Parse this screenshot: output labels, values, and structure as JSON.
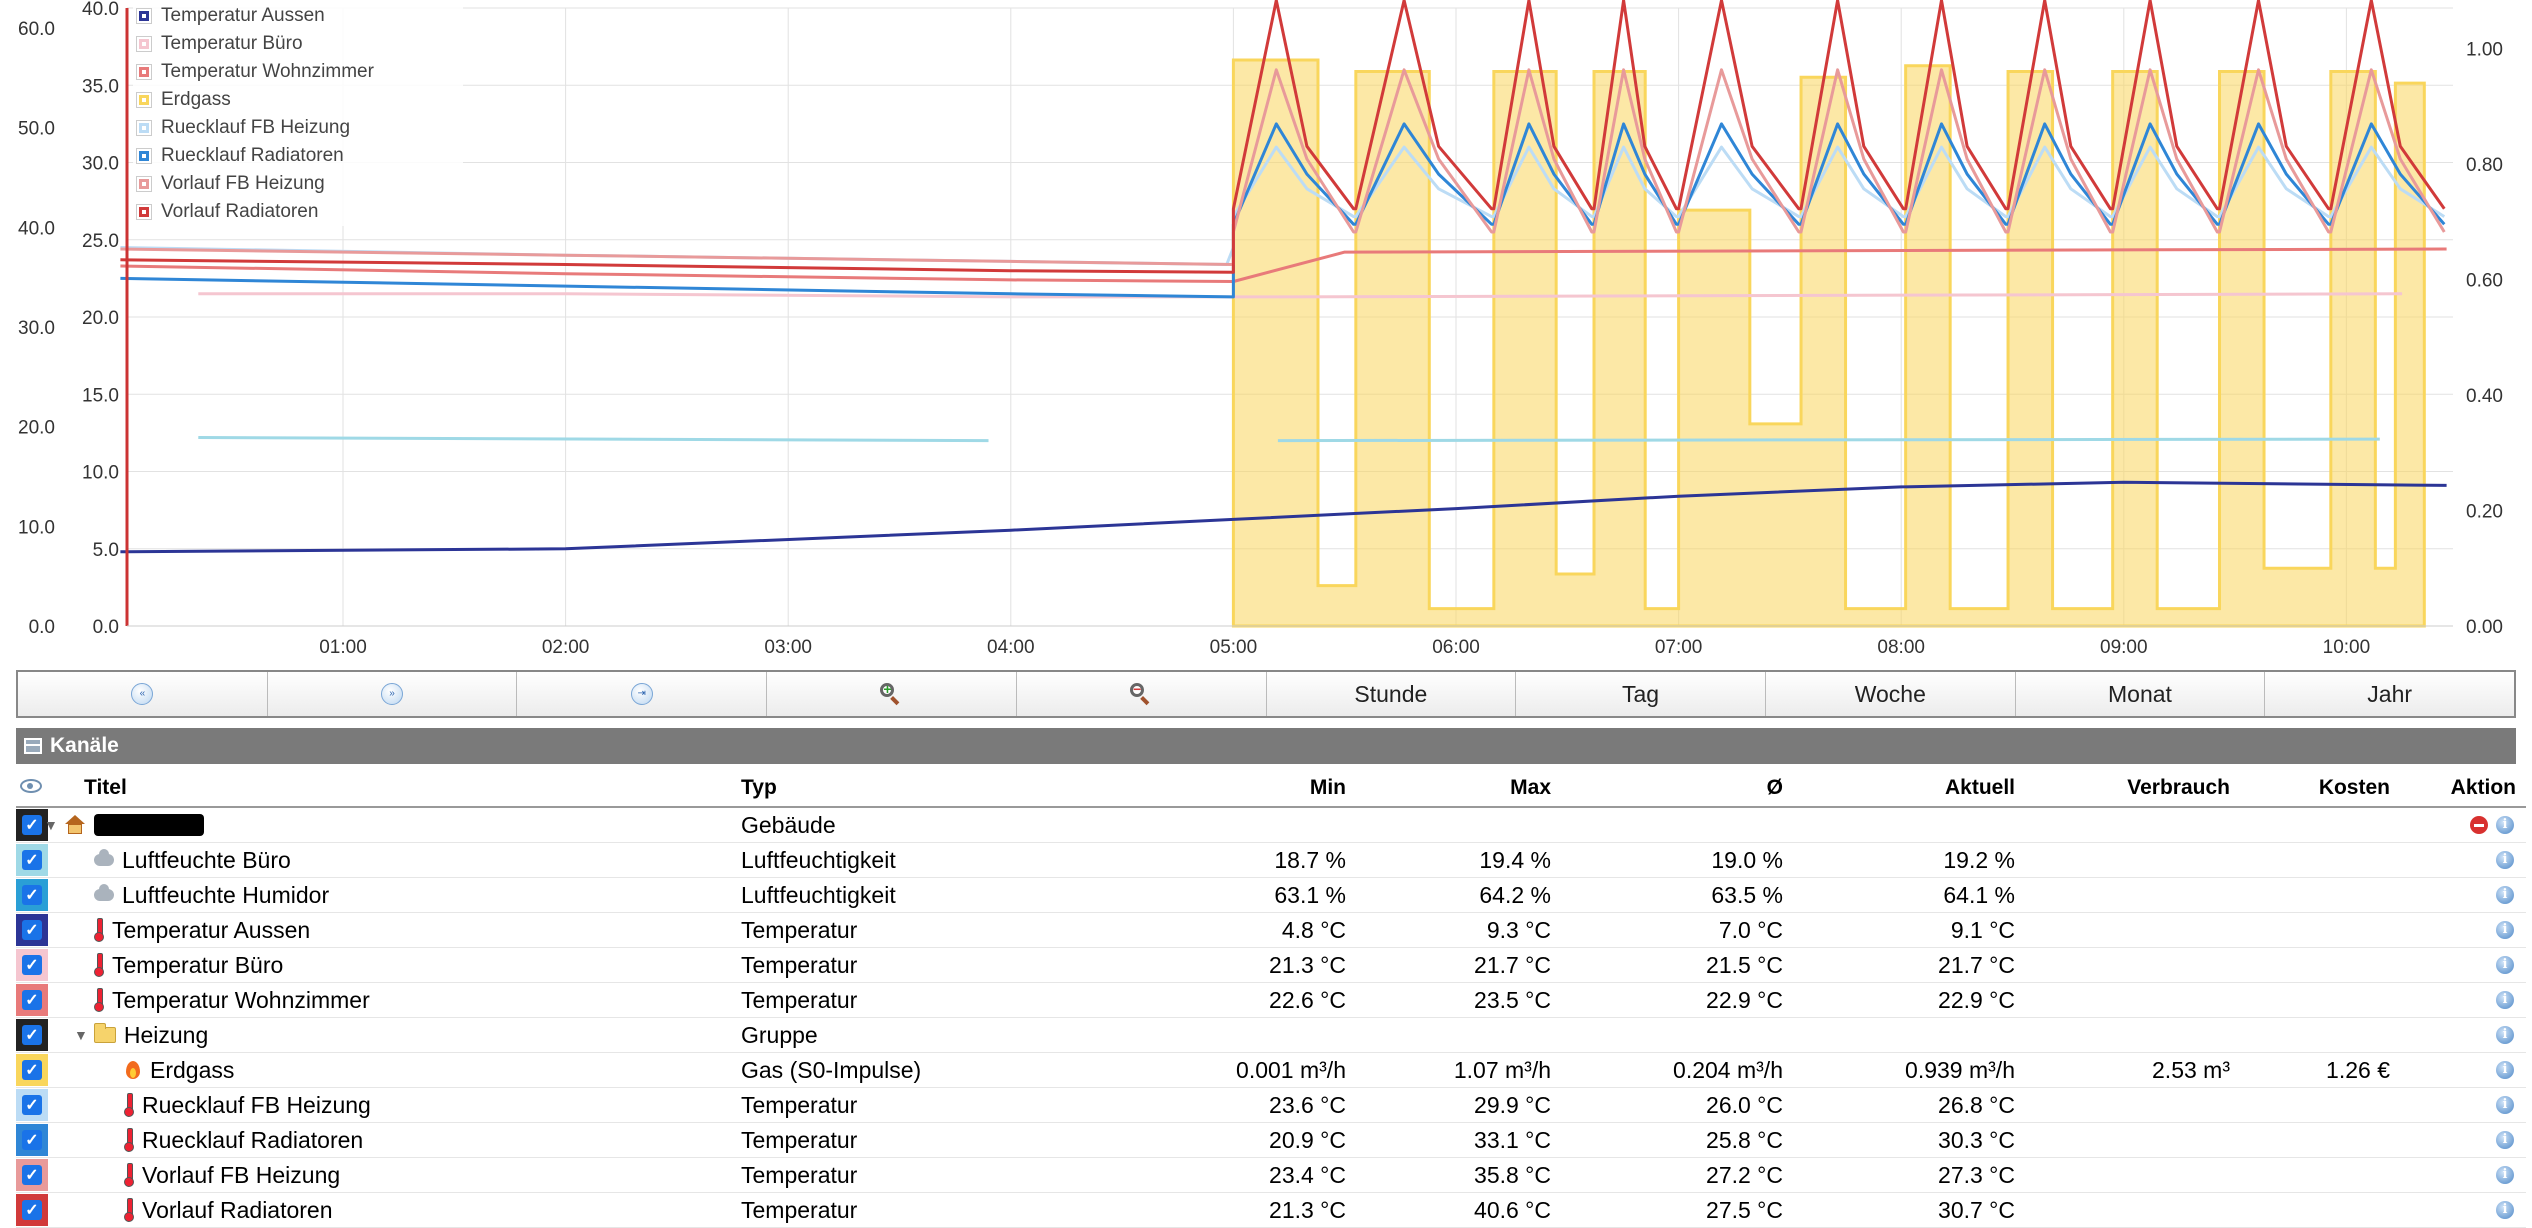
{
  "chart_data": {
    "type": "line",
    "x_ticks": [
      "01:00",
      "02:00",
      "03:00",
      "04:00",
      "05:00",
      "06:00",
      "07:00",
      "08:00",
      "09:00",
      "10:00"
    ],
    "y_axes": {
      "outer_left": {
        "ticks": [
          "0.0",
          "10.0",
          "20.0",
          "30.0",
          "40.0",
          "50.0",
          "60.0"
        ],
        "ylim": [
          0,
          62
        ]
      },
      "inner_left": {
        "ticks": [
          "0.0",
          "5.0",
          "10.0",
          "15.0",
          "20.0",
          "25.0",
          "30.0",
          "35.0",
          "40.0"
        ],
        "ylim": [
          0,
          40
        ]
      },
      "right": {
        "ticks": [
          "0.00",
          "0.20",
          "0.40",
          "0.60",
          "0.80",
          "1.00"
        ],
        "ylim": [
          0,
          1.07
        ]
      }
    },
    "grid": true,
    "legend_position": "top-left",
    "series": [
      {
        "name": "Temperatur Aussen",
        "color": "#2c3596"
      },
      {
        "name": "Temperatur Büro",
        "color": "#f5c6d0"
      },
      {
        "name": "Temperatur Wohnzimmer",
        "color": "#e87a7a"
      },
      {
        "name": "Erdgass",
        "color": "#f9d65c"
      },
      {
        "name": "Ruecklauf FB Heizung",
        "color": "#bcdcf5"
      },
      {
        "name": "Ruecklauf Radiatoren",
        "color": "#2f86d6"
      },
      {
        "name": "Vorlauf FB Heizung",
        "color": "#e89a9a"
      },
      {
        "name": "Vorlauf Radiatoren",
        "color": "#d13a3a"
      }
    ]
  },
  "toolbar": {
    "buttons": [
      "«",
      "»",
      "⇥",
      "zoom-in",
      "zoom-out",
      "Stunde",
      "Tag",
      "Woche",
      "Monat",
      "Jahr"
    ]
  },
  "channels": {
    "title": "Kanäle",
    "columns": {
      "titel": "Titel",
      "typ": "Typ",
      "min": "Min",
      "max": "Max",
      "avg": "Ø",
      "aktuell": "Aktuell",
      "verbrauch": "Verbrauch",
      "kosten": "Kosten",
      "aktion": "Aktion"
    },
    "rows": [
      {
        "title": "",
        "type": "Gebäude",
        "min": "",
        "max": "",
        "avg": "",
        "cur": "",
        "use": "",
        "cost": "",
        "color": "#222222",
        "indent": 0,
        "icon": "house",
        "toggle": true,
        "redacted": true,
        "delete": true
      },
      {
        "title": "Luftfeuchte Büro",
        "type": "Luftfeuchtigkeit",
        "min": "18.7 %",
        "max": "19.4 %",
        "avg": "19.0 %",
        "cur": "19.2 %",
        "use": "",
        "cost": "",
        "color": "#9fd9e6",
        "indent": 1,
        "icon": "cloud"
      },
      {
        "title": "Luftfeuchte Humidor",
        "type": "Luftfeuchtigkeit",
        "min": "63.1 %",
        "max": "64.2 %",
        "avg": "63.5 %",
        "cur": "64.1 %",
        "use": "",
        "cost": "",
        "color": "#2a9fd6",
        "indent": 1,
        "icon": "cloud"
      },
      {
        "title": "Temperatur Aussen",
        "type": "Temperatur",
        "min": "4.8 °C",
        "max": "9.3 °C",
        "avg": "7.0 °C",
        "cur": "9.1 °C",
        "use": "",
        "cost": "",
        "color": "#2c3596",
        "indent": 1,
        "icon": "thermo"
      },
      {
        "title": "Temperatur Büro",
        "type": "Temperatur",
        "min": "21.3 °C",
        "max": "21.7 °C",
        "avg": "21.5 °C",
        "cur": "21.7 °C",
        "use": "",
        "cost": "",
        "color": "#f5c6d0",
        "indent": 1,
        "icon": "thermo"
      },
      {
        "title": "Temperatur Wohnzimmer",
        "type": "Temperatur",
        "min": "22.6 °C",
        "max": "23.5 °C",
        "avg": "22.9 °C",
        "cur": "22.9 °C",
        "use": "",
        "cost": "",
        "color": "#e87a7a",
        "indent": 1,
        "icon": "thermo"
      },
      {
        "title": "Heizung",
        "type": "Gruppe",
        "min": "",
        "max": "",
        "avg": "",
        "cur": "",
        "use": "",
        "cost": "",
        "color": "#222222",
        "indent": 1,
        "icon": "folder",
        "toggle": true
      },
      {
        "title": "Erdgass",
        "type": "Gas (S0-Impulse)",
        "min": "0.001 m³/h",
        "max": "1.07 m³/h",
        "avg": "0.204 m³/h",
        "cur": "0.939 m³/h",
        "use": "2.53 m³",
        "cost": "1.26 €",
        "color": "#f9d65c",
        "indent": 2,
        "icon": "flame"
      },
      {
        "title": "Ruecklauf FB Heizung",
        "type": "Temperatur",
        "min": "23.6 °C",
        "max": "29.9 °C",
        "avg": "26.0 °C",
        "cur": "26.8 °C",
        "use": "",
        "cost": "",
        "color": "#bcdcf5",
        "indent": 2,
        "icon": "thermo"
      },
      {
        "title": "Ruecklauf Radiatoren",
        "type": "Temperatur",
        "min": "20.9 °C",
        "max": "33.1 °C",
        "avg": "25.8 °C",
        "cur": "30.3 °C",
        "use": "",
        "cost": "",
        "color": "#2f86d6",
        "indent": 2,
        "icon": "thermo"
      },
      {
        "title": "Vorlauf FB Heizung",
        "type": "Temperatur",
        "min": "23.4 °C",
        "max": "35.8 °C",
        "avg": "27.2 °C",
        "cur": "27.3 °C",
        "use": "",
        "cost": "",
        "color": "#e89a9a",
        "indent": 2,
        "icon": "thermo"
      },
      {
        "title": "Vorlauf Radiatoren",
        "type": "Temperatur",
        "min": "21.3 °C",
        "max": "40.6 °C",
        "avg": "27.5 °C",
        "cur": "30.7 °C",
        "use": "",
        "cost": "",
        "color": "#d13a3a",
        "indent": 2,
        "icon": "thermo"
      }
    ]
  }
}
